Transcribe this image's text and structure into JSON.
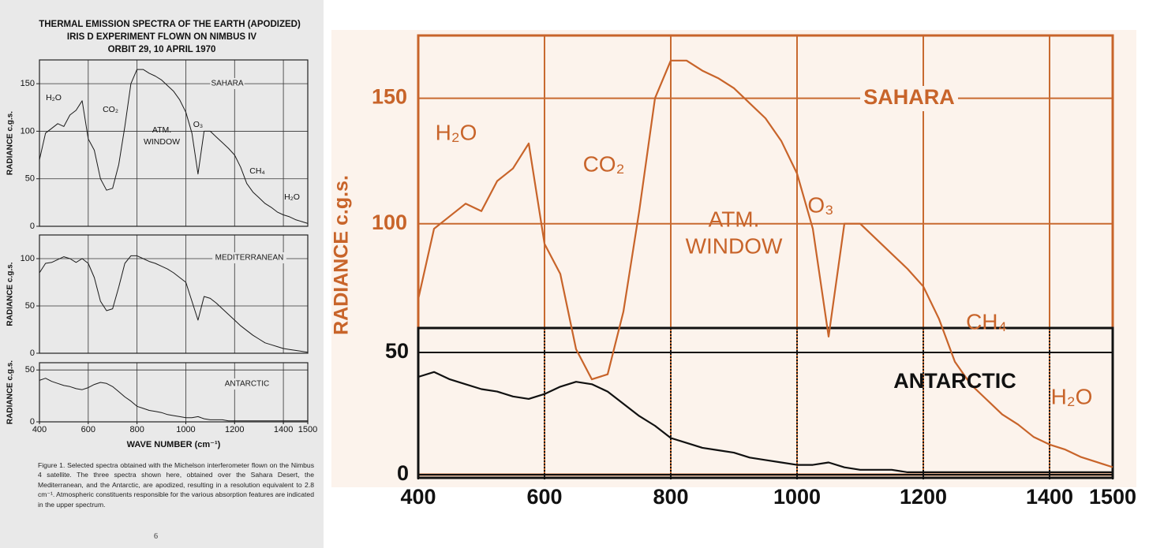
{
  "figure": {
    "title_lines": [
      "THERMAL EMISSION SPECTRA OF THE EARTH   (APODIZED)",
      "IRIS D EXPERIMENT FLOWN ON NIMBUS IV",
      "ORBIT 29, 10 APRIL 1970"
    ],
    "caption": "Figure 1.  Selected spectra obtained with the Michelson interferometer flown on the Nimbus 4 satellite.  The three spectra shown here, obtained over the Sahara Desert, the Mediterranean, and the Antarctic, are apodized, resulting in a resolution equivalent to 2.8 cm⁻¹.  Atmospheric constituents responsible for the various absorption features are indicated in the upper spectrum.",
    "page_number": "6"
  },
  "chart_data": [
    {
      "type": "line",
      "ylabel": "RADIANCE c.g.s.",
      "x": [
        400,
        425,
        450,
        475,
        500,
        525,
        550,
        575,
        600,
        625,
        650,
        675,
        700,
        725,
        750,
        775,
        800,
        825,
        850,
        875,
        900,
        925,
        950,
        975,
        1000,
        1025,
        1050,
        1075,
        1100,
        1125,
        1150,
        1175,
        1200,
        1225,
        1250,
        1275,
        1300,
        1325,
        1350,
        1375,
        1400,
        1425,
        1450,
        1475,
        1500
      ],
      "series": [
        {
          "name": "SAHARA",
          "color": "#1a1a1a",
          "values": [
            70,
            98,
            103,
            108,
            105,
            117,
            122,
            132,
            92,
            80,
            50,
            38,
            40,
            65,
            105,
            150,
            165,
            165,
            161,
            158,
            154,
            148,
            142,
            133,
            120,
            98,
            55,
            100,
            100,
            94,
            88,
            82,
            75,
            62,
            45,
            36,
            30,
            24,
            20,
            15,
            12,
            10,
            7,
            5,
            3
          ]
        }
      ],
      "annotations": [
        "H₂O",
        "CO₂",
        "ATM.",
        "WINDOW",
        "O₃",
        "CH₄",
        "H₂O"
      ],
      "xlim": [
        400,
        1500
      ],
      "xticks": [
        400,
        600,
        800,
        1000,
        1200,
        1400,
        1500
      ],
      "ylim": [
        0,
        175
      ],
      "yticks": [
        0,
        50,
        100,
        150
      ],
      "grid": true,
      "grid_color": "#333333"
    },
    {
      "type": "line",
      "ylabel": "RADIANCE c.g.s.",
      "x": [
        400,
        425,
        450,
        475,
        500,
        525,
        550,
        575,
        600,
        625,
        650,
        675,
        700,
        725,
        750,
        775,
        800,
        825,
        850,
        875,
        900,
        925,
        950,
        975,
        1000,
        1025,
        1050,
        1075,
        1100,
        1125,
        1150,
        1175,
        1200,
        1225,
        1250,
        1275,
        1300,
        1325,
        1350,
        1375,
        1400,
        1425,
        1450,
        1475,
        1500
      ],
      "series": [
        {
          "name": "MEDITERRANEAN",
          "color": "#1a1a1a",
          "values": [
            85,
            95,
            96,
            99,
            102,
            100,
            96,
            100,
            95,
            80,
            55,
            45,
            47,
            70,
            95,
            103,
            103,
            100,
            97,
            95,
            92,
            89,
            85,
            80,
            75,
            55,
            35,
            60,
            58,
            53,
            47,
            41,
            35,
            29,
            24,
            19,
            15,
            11,
            9,
            7,
            5,
            4,
            3,
            2,
            1
          ]
        }
      ],
      "xlim": [
        400,
        1500
      ],
      "xticks": [
        400,
        600,
        800,
        1000,
        1200,
        1400,
        1500
      ],
      "ylim": [
        0,
        125
      ],
      "yticks": [
        0,
        50,
        100
      ],
      "grid": true,
      "grid_color": "#333333"
    },
    {
      "type": "line",
      "ylabel": "RADIANCE c.g.s.",
      "xlabel": "WAVE NUMBER (cm⁻¹)",
      "x": [
        400,
        425,
        450,
        475,
        500,
        525,
        550,
        575,
        600,
        625,
        650,
        675,
        700,
        725,
        750,
        775,
        800,
        825,
        850,
        875,
        900,
        925,
        950,
        975,
        1000,
        1025,
        1050,
        1075,
        1100,
        1125,
        1150,
        1175,
        1200,
        1225,
        1250,
        1275,
        1300,
        1325,
        1350,
        1375,
        1400,
        1425,
        1450,
        1475,
        1500
      ],
      "series": [
        {
          "name": "ANTARCTIC",
          "color": "#1a1a1a",
          "values": [
            40,
            42,
            39,
            37,
            35,
            34,
            32,
            31,
            33,
            36,
            38,
            37,
            34,
            29,
            24,
            20,
            15,
            13,
            11,
            10,
            9,
            7,
            6,
            5,
            4,
            4,
            5,
            3,
            2,
            2,
            2,
            1,
            1,
            1,
            1,
            1,
            1,
            1,
            1,
            1,
            1,
            1,
            1,
            1,
            1
          ]
        }
      ],
      "xlim": [
        400,
        1500
      ],
      "xticks": [
        400,
        600,
        800,
        1000,
        1200,
        1400,
        1500
      ],
      "ylim": [
        0,
        57
      ],
      "yticks": [
        0,
        50
      ],
      "grid": true,
      "grid_color": "#333333"
    },
    {
      "type": "line",
      "ylabel": "RADIANCE c.g.s.",
      "x": [
        400,
        425,
        450,
        475,
        500,
        525,
        550,
        575,
        600,
        625,
        650,
        675,
        700,
        725,
        750,
        775,
        800,
        825,
        850,
        875,
        900,
        925,
        950,
        975,
        1000,
        1025,
        1050,
        1075,
        1100,
        1125,
        1150,
        1175,
        1200,
        1225,
        1250,
        1275,
        1300,
        1325,
        1350,
        1375,
        1400,
        1425,
        1450,
        1475,
        1500
      ],
      "series": [
        {
          "name": "SAHARA",
          "color": "#c8642a",
          "values": [
            70,
            98,
            103,
            108,
            105,
            117,
            122,
            132,
            92,
            80,
            50,
            38,
            40,
            65,
            105,
            150,
            165,
            165,
            161,
            158,
            154,
            148,
            142,
            133,
            120,
            98,
            55,
            100,
            100,
            94,
            88,
            82,
            75,
            62,
            45,
            36,
            30,
            24,
            20,
            15,
            12,
            10,
            7,
            5,
            3
          ]
        },
        {
          "name": "ANTARCTIC",
          "color": "#111111",
          "axis": "y2",
          "values": [
            40,
            42,
            39,
            37,
            35,
            34,
            32,
            31,
            33,
            36,
            38,
            37,
            34,
            29,
            24,
            20,
            15,
            13,
            11,
            10,
            9,
            7,
            6,
            5,
            4,
            4,
            5,
            3,
            2,
            2,
            2,
            1,
            1,
            1,
            1,
            1,
            1,
            1,
            1,
            1,
            1,
            1,
            1,
            1,
            1
          ]
        }
      ],
      "annotations": [
        "H₂O",
        "CO₂",
        "ATM.",
        "WINDOW",
        "O₃",
        "CH₄",
        "H₂O"
      ],
      "xlim": [
        400,
        1500
      ],
      "xticks": [
        400,
        600,
        800,
        1000,
        1200,
        1400,
        1500
      ],
      "ylim": [
        0,
        175
      ],
      "yticks": [
        100,
        150
      ],
      "y2lim": [
        0,
        60
      ],
      "y2ticks": [
        0,
        50
      ],
      "grid": true,
      "grid_color": "#c86a30"
    }
  ]
}
